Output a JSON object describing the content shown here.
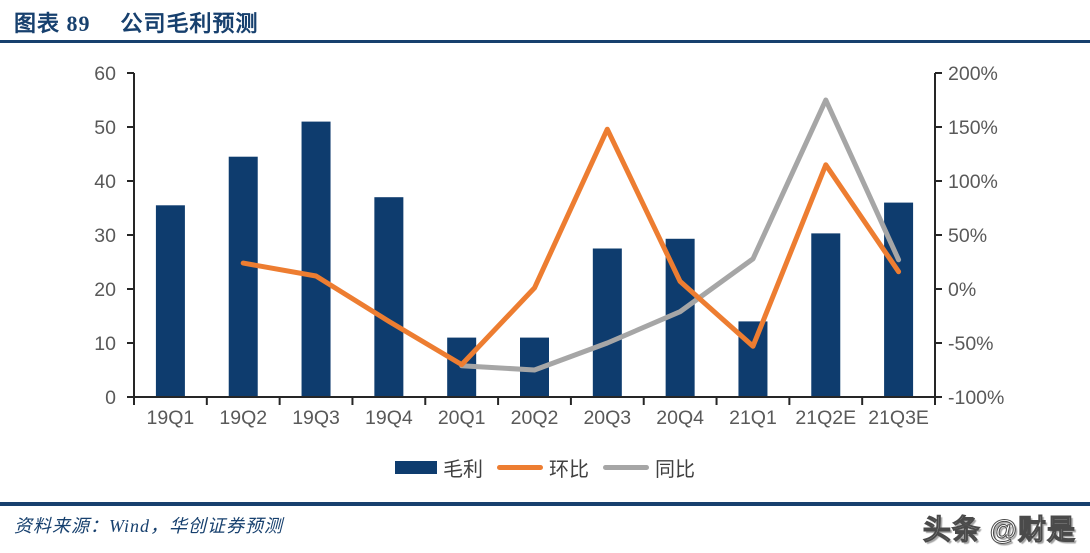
{
  "header": {
    "chart_label": "图表 89",
    "title": "公司毛利预测"
  },
  "source": {
    "text": "资料来源：Wind，华创证券预测"
  },
  "watermark": {
    "text": "头条 @财是"
  },
  "colors": {
    "navy": "#17406E",
    "bar": "#0E3C6E",
    "orange": "#ED7D31",
    "gray": "#A6A6A6",
    "axis": "#262626",
    "tick_text": "#595959",
    "legend_text": "#404040"
  },
  "chart_data": {
    "type": "bar",
    "subtype": "combo-bar-line-dual-axis",
    "title": "公司毛利预测",
    "categories": [
      "19Q1",
      "19Q2",
      "19Q3",
      "19Q4",
      "20Q1",
      "20Q2",
      "20Q3",
      "20Q4",
      "21Q1",
      "21Q2E",
      "21Q3E"
    ],
    "bar_series": {
      "name": "毛利",
      "axis": "left",
      "color": "#0E3C6E",
      "values": [
        35.5,
        44.5,
        51,
        37,
        11,
        11,
        27.5,
        29.3,
        14,
        30.3,
        36
      ]
    },
    "line_series": [
      {
        "name": "同比",
        "axis": "right",
        "color": "#A6A6A6",
        "values_pct": [
          null,
          null,
          null,
          null,
          -71,
          -75,
          -50,
          -21,
          28,
          175,
          27
        ]
      },
      {
        "name": "环比",
        "axis": "right",
        "color": "#ED7D31",
        "values_pct": [
          null,
          24,
          12,
          -30,
          -70,
          1,
          148,
          7,
          -53,
          115,
          16
        ]
      }
    ],
    "legend_order": [
      "毛利",
      "环比",
      "同比"
    ],
    "left_axis": {
      "min": 0,
      "max": 60,
      "step": 10,
      "tick_labels": [
        "0",
        "10",
        "20",
        "30",
        "40",
        "50",
        "60"
      ]
    },
    "right_axis": {
      "min": -100,
      "max": 200,
      "step": 50,
      "tick_labels": [
        "-100%",
        "-50%",
        "0%",
        "50%",
        "100%",
        "150%",
        "200%"
      ]
    },
    "grid": false,
    "legend_position": "bottom"
  }
}
